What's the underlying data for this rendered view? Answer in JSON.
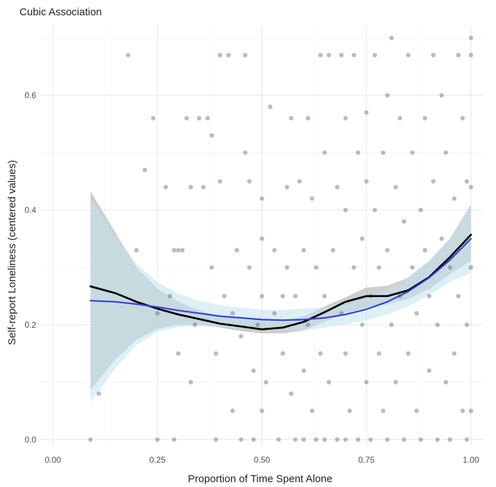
{
  "chart_data": {
    "type": "scatter",
    "title": "Cubic Association",
    "xlabel": "Proportion of Time Spent Alone",
    "ylabel": "Self-report Loneliness (centered values)",
    "xlim": [
      -0.03,
      1.03
    ],
    "ylim": [
      -0.01,
      0.72
    ],
    "x_ticks": [
      0.0,
      0.25,
      0.5,
      0.75,
      1.0
    ],
    "x_tick_labels": [
      "0.00",
      "0.25",
      "0.50",
      "0.75",
      "1.00"
    ],
    "y_ticks": [
      0.0,
      0.2,
      0.4,
      0.6
    ],
    "y_tick_labels": [
      "0.0",
      "0.2",
      "0.4",
      "0.6"
    ],
    "grid": true,
    "colors": {
      "points": "#555555",
      "fit_line": "#000000",
      "cubic_line": "#3b3bd6",
      "band_gray": "#bdbdbd",
      "band_blue": "#bfe3ef"
    },
    "points": [
      [
        0.09,
        0.0
      ],
      [
        0.11,
        0.08
      ],
      [
        0.18,
        0.67
      ],
      [
        0.2,
        0.33
      ],
      [
        0.22,
        0.47
      ],
      [
        0.24,
        0.56
      ],
      [
        0.25,
        0.0
      ],
      [
        0.25,
        0.22
      ],
      [
        0.27,
        0.44
      ],
      [
        0.29,
        0.33
      ],
      [
        0.3,
        0.33
      ],
      [
        0.31,
        0.33
      ],
      [
        0.3,
        0.15
      ],
      [
        0.29,
        0.0
      ],
      [
        0.28,
        0.25
      ],
      [
        0.32,
        0.56
      ],
      [
        0.33,
        0.44
      ],
      [
        0.33,
        0.1
      ],
      [
        0.34,
        0.2
      ],
      [
        0.35,
        0.56
      ],
      [
        0.36,
        0.44
      ],
      [
        0.37,
        0.56
      ],
      [
        0.38,
        0.53
      ],
      [
        0.38,
        0.3
      ],
      [
        0.39,
        0.15
      ],
      [
        0.39,
        0.0
      ],
      [
        0.4,
        0.67
      ],
      [
        0.4,
        0.45
      ],
      [
        0.41,
        0.25
      ],
      [
        0.42,
        0.67
      ],
      [
        0.43,
        0.22
      ],
      [
        0.43,
        0.05
      ],
      [
        0.44,
        0.33
      ],
      [
        0.45,
        0.18
      ],
      [
        0.46,
        0.67
      ],
      [
        0.46,
        0.5
      ],
      [
        0.47,
        0.45
      ],
      [
        0.47,
        0.3
      ],
      [
        0.48,
        0.12
      ],
      [
        0.48,
        0.0
      ],
      [
        0.49,
        0.2
      ],
      [
        0.5,
        0.42
      ],
      [
        0.5,
        0.35
      ],
      [
        0.5,
        0.25
      ],
      [
        0.5,
        0.05
      ],
      [
        0.51,
        0.1
      ],
      [
        0.52,
        0.58
      ],
      [
        0.53,
        0.33
      ],
      [
        0.53,
        0.22
      ],
      [
        0.54,
        0.0
      ],
      [
        0.55,
        0.15
      ],
      [
        0.56,
        0.44
      ],
      [
        0.56,
        0.3
      ],
      [
        0.57,
        0.56
      ],
      [
        0.57,
        0.08
      ],
      [
        0.58,
        0.25
      ],
      [
        0.58,
        0.0
      ],
      [
        0.59,
        0.45
      ],
      [
        0.6,
        0.33
      ],
      [
        0.6,
        0.12
      ],
      [
        0.61,
        0.56
      ],
      [
        0.61,
        0.2
      ],
      [
        0.62,
        0.05
      ],
      [
        0.62,
        0.42
      ],
      [
        0.63,
        0.3
      ],
      [
        0.63,
        0.0
      ],
      [
        0.64,
        0.67
      ],
      [
        0.64,
        0.15
      ],
      [
        0.65,
        0.5
      ],
      [
        0.65,
        0.25
      ],
      [
        0.66,
        0.1
      ],
      [
        0.66,
        0.67
      ],
      [
        0.67,
        0.33
      ],
      [
        0.68,
        0.44
      ],
      [
        0.68,
        0.0
      ],
      [
        0.69,
        0.22
      ],
      [
        0.69,
        0.67
      ],
      [
        0.7,
        0.56
      ],
      [
        0.7,
        0.4
      ],
      [
        0.7,
        0.15
      ],
      [
        0.71,
        0.05
      ],
      [
        0.72,
        0.3
      ],
      [
        0.72,
        0.67
      ],
      [
        0.73,
        0.5
      ],
      [
        0.73,
        0.0
      ],
      [
        0.74,
        0.2
      ],
      [
        0.74,
        0.35
      ],
      [
        0.75,
        0.57
      ],
      [
        0.75,
        0.45
      ],
      [
        0.75,
        0.1
      ],
      [
        0.76,
        0.25
      ],
      [
        0.76,
        0.0
      ],
      [
        0.77,
        0.4
      ],
      [
        0.77,
        0.67
      ],
      [
        0.78,
        0.15
      ],
      [
        0.78,
        0.3
      ],
      [
        0.79,
        0.05
      ],
      [
        0.79,
        0.5
      ],
      [
        0.8,
        0.6
      ],
      [
        0.8,
        0.33
      ],
      [
        0.8,
        0.0
      ],
      [
        0.81,
        0.7
      ],
      [
        0.81,
        0.2
      ],
      [
        0.82,
        0.44
      ],
      [
        0.82,
        0.1
      ],
      [
        0.83,
        0.25
      ],
      [
        0.83,
        0.56
      ],
      [
        0.84,
        0.0
      ],
      [
        0.84,
        0.38
      ],
      [
        0.85,
        0.15
      ],
      [
        0.85,
        0.67
      ],
      [
        0.86,
        0.3
      ],
      [
        0.86,
        0.5
      ],
      [
        0.87,
        0.05
      ],
      [
        0.87,
        0.22
      ],
      [
        0.88,
        0.4
      ],
      [
        0.88,
        0.0
      ],
      [
        0.89,
        0.56
      ],
      [
        0.89,
        0.33
      ],
      [
        0.9,
        0.12
      ],
      [
        0.9,
        0.25
      ],
      [
        0.91,
        0.45
      ],
      [
        0.91,
        0.67
      ],
      [
        0.92,
        0.0
      ],
      [
        0.92,
        0.2
      ],
      [
        0.93,
        0.6
      ],
      [
        0.93,
        0.35
      ],
      [
        0.94,
        0.1
      ],
      [
        0.94,
        0.5
      ],
      [
        0.95,
        0.3
      ],
      [
        0.95,
        0.0
      ],
      [
        0.96,
        0.15
      ],
      [
        0.96,
        0.42
      ],
      [
        0.97,
        0.67
      ],
      [
        0.97,
        0.25
      ],
      [
        0.98,
        0.56
      ],
      [
        0.98,
        0.05
      ],
      [
        0.99,
        0.45
      ],
      [
        0.99,
        0.2
      ],
      [
        1.0,
        0.67
      ],
      [
        1.0,
        0.7
      ],
      [
        1.0,
        0.44
      ],
      [
        1.0,
        0.05
      ],
      [
        1.0,
        0.3
      ],
      [
        0.99,
        0.0
      ],
      [
        0.6,
        0.0
      ],
      [
        0.7,
        0.0
      ],
      [
        0.65,
        0.0
      ],
      [
        0.55,
        0.25
      ],
      [
        0.45,
        0.0
      ]
    ],
    "series": [
      {
        "name": "black-fit",
        "x": [
          0.09,
          0.15,
          0.2,
          0.25,
          0.3,
          0.35,
          0.4,
          0.45,
          0.5,
          0.55,
          0.6,
          0.65,
          0.7,
          0.75,
          0.8,
          0.85,
          0.9,
          0.95,
          1.0
        ],
        "y": [
          0.267,
          0.255,
          0.24,
          0.228,
          0.218,
          0.21,
          0.202,
          0.197,
          0.192,
          0.195,
          0.205,
          0.222,
          0.24,
          0.25,
          0.25,
          0.26,
          0.283,
          0.318,
          0.357
        ]
      },
      {
        "name": "blue-cubic",
        "x": [
          0.09,
          0.15,
          0.2,
          0.25,
          0.3,
          0.35,
          0.4,
          0.45,
          0.5,
          0.55,
          0.6,
          0.65,
          0.7,
          0.75,
          0.8,
          0.85,
          0.9,
          0.95,
          1.0
        ],
        "y": [
          0.242,
          0.24,
          0.236,
          0.231,
          0.225,
          0.22,
          0.215,
          0.212,
          0.209,
          0.208,
          0.209,
          0.212,
          0.218,
          0.227,
          0.24,
          0.258,
          0.282,
          0.313,
          0.35
        ]
      }
    ],
    "bands": [
      {
        "name": "gray-band",
        "x": [
          0.09,
          0.15,
          0.2,
          0.25,
          0.3,
          0.35,
          0.4,
          0.45,
          0.5,
          0.55,
          0.6,
          0.65,
          0.7,
          0.75,
          0.8,
          0.85,
          0.9,
          0.95,
          1.0
        ],
        "lower": [
          0.087,
          0.14,
          0.174,
          0.193,
          0.2,
          0.2,
          0.195,
          0.189,
          0.185,
          0.185,
          0.19,
          0.205,
          0.22,
          0.23,
          0.235,
          0.245,
          0.262,
          0.288,
          0.312
        ],
        "upper": [
          0.433,
          0.36,
          0.3,
          0.263,
          0.24,
          0.225,
          0.215,
          0.21,
          0.208,
          0.207,
          0.215,
          0.232,
          0.248,
          0.265,
          0.268,
          0.282,
          0.31,
          0.35,
          0.41
        ]
      },
      {
        "name": "blue-band",
        "x": [
          0.09,
          0.15,
          0.2,
          0.25,
          0.3,
          0.35,
          0.4,
          0.45,
          0.5,
          0.55,
          0.6,
          0.65,
          0.7,
          0.75,
          0.8,
          0.85,
          0.9,
          0.95,
          1.0
        ],
        "lower": [
          0.065,
          0.125,
          0.165,
          0.188,
          0.196,
          0.198,
          0.196,
          0.194,
          0.192,
          0.19,
          0.19,
          0.195,
          0.201,
          0.208,
          0.218,
          0.232,
          0.252,
          0.275,
          0.29
        ],
        "upper": [
          0.42,
          0.355,
          0.307,
          0.274,
          0.254,
          0.242,
          0.234,
          0.23,
          0.226,
          0.226,
          0.228,
          0.23,
          0.235,
          0.246,
          0.262,
          0.284,
          0.312,
          0.351,
          0.41
        ]
      }
    ]
  }
}
